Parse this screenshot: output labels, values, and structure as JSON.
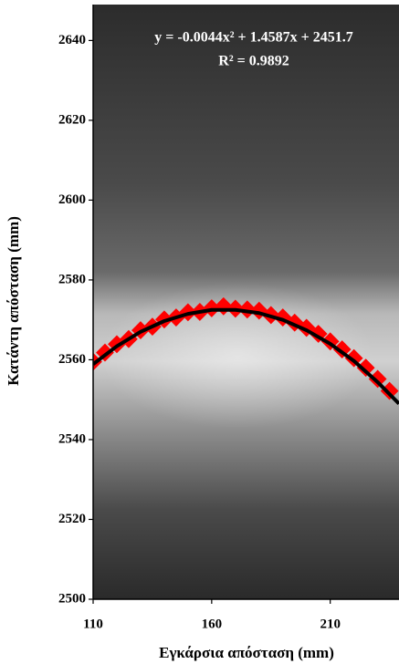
{
  "chart_data": {
    "type": "scatter",
    "x_label": "Εγκάρσια απόσταση (mm)",
    "y_label": "Κατάντη απόσταση (mm)",
    "annotations": [
      "y = -0.0044x² + 1.4587x + 2451.7",
      "R² = 0.9892"
    ],
    "xlim": [
      110,
      239
    ],
    "ylim": [
      2500,
      2649
    ],
    "xticks": [
      110,
      160,
      210
    ],
    "yticks": [
      2500,
      2520,
      2540,
      2560,
      2580,
      2600,
      2620,
      2640
    ],
    "series": [
      {
        "type": "scatter",
        "color": "#ff0000",
        "x": [
          110,
          115,
          120,
          125,
          130,
          135,
          140,
          145,
          150,
          155,
          160,
          165,
          170,
          175,
          180,
          185,
          190,
          195,
          200,
          205,
          210,
          215,
          220,
          225,
          230,
          235
        ],
        "values": [
          2559.5,
          2561.8,
          2563.9,
          2565.2,
          2567.4,
          2568.3,
          2570.1,
          2570.6,
          2571.9,
          2572.0,
          2572.9,
          2573.4,
          2572.8,
          2572.6,
          2572.3,
          2571.2,
          2570.6,
          2569.3,
          2568.0,
          2566.5,
          2564.6,
          2562.6,
          2560.4,
          2558.0,
          2555.2,
          2552.2
        ]
      },
      {
        "type": "line",
        "color": "#000000",
        "x": [
          110,
          120,
          130,
          140,
          150,
          160,
          170,
          180,
          190,
          200,
          210,
          220,
          230,
          239
        ],
        "values": [
          2558.9,
          2563.4,
          2567.0,
          2569.7,
          2571.5,
          2572.5,
          2572.5,
          2571.7,
          2570.0,
          2567.4,
          2564.0,
          2559.7,
          2554.4,
          2549.0
        ]
      }
    ]
  }
}
